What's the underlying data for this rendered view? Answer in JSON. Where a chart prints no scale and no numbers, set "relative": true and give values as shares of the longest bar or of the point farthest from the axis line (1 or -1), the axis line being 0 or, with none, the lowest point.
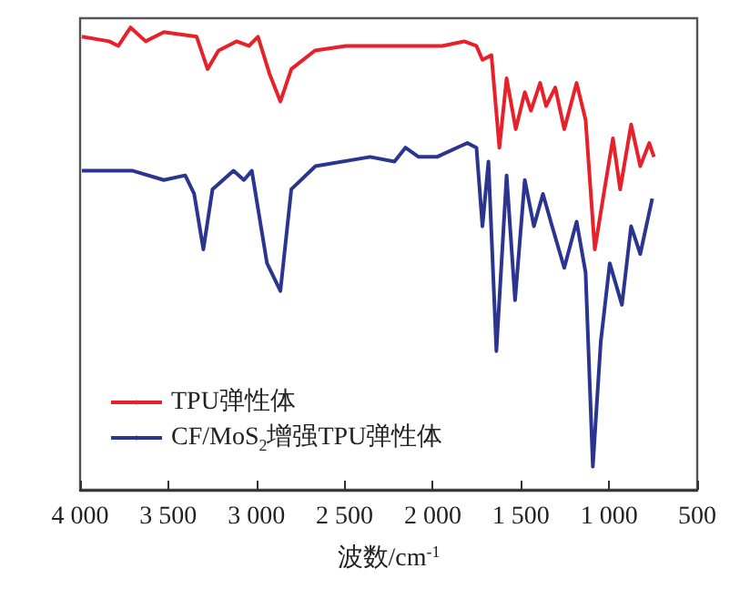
{
  "chart_data": {
    "type": "line",
    "xlabel": "波数/cm$^{-1}$",
    "relative": true,
    "xlim": [
      4000,
      500
    ],
    "xticks": [
      {
        "value": 4000,
        "label": "4 000"
      },
      {
        "value": 3500,
        "label": "3 500"
      },
      {
        "value": 3000,
        "label": "3 000"
      },
      {
        "value": 2500,
        "label": "2 500"
      },
      {
        "value": 2000,
        "label": "2 000"
      },
      {
        "value": 1500,
        "label": "1 500"
      },
      {
        "value": 1000,
        "label": "1 000"
      },
      500
    ],
    "tick_labels": "x",
    "grid": false,
    "legend": "bottom left",
    "marker": "none",
    "line_style": "solid",
    "series": [
      {
        "name": "TPU弹性体",
        "color": "#e8202a",
        "x": [
          3990,
          3835,
          3783,
          3714,
          3628,
          3525,
          3339,
          3277,
          3215,
          3112,
          3043,
          2991,
          2926,
          2864,
          2802,
          2668,
          2493,
          2080,
          1946,
          1822,
          1752,
          1718,
          1667,
          1622,
          1581,
          1529,
          1478,
          1443,
          1391,
          1357,
          1305,
          1254,
          1184,
          1133,
          1081,
          1030,
          978,
          937,
          875,
          823,
          772,
          745
        ],
        "values": [
          0.98,
          0.97,
          0.96,
          1.0,
          0.97,
          0.99,
          0.98,
          0.91,
          0.95,
          0.97,
          0.96,
          0.98,
          0.9,
          0.84,
          0.91,
          0.95,
          0.96,
          0.96,
          0.96,
          0.97,
          0.96,
          0.93,
          0.94,
          0.74,
          0.89,
          0.78,
          0.86,
          0.82,
          0.88,
          0.83,
          0.87,
          0.78,
          0.88,
          0.8,
          0.52,
          0.64,
          0.76,
          0.65,
          0.79,
          0.7,
          0.75,
          0.72
        ]
      },
      {
        "name": "CF/MoS$_{2}$增强TPU弹性体",
        "color": "#2b3590",
        "x": [
          3990,
          3701,
          3525,
          3404,
          3353,
          3301,
          3249,
          3130,
          3071,
          3026,
          2940,
          2864,
          2802,
          2665,
          2355,
          2217,
          2155,
          2080,
          1976,
          1804,
          1752,
          1718,
          1684,
          1639,
          1581,
          1533,
          1478,
          1426,
          1375,
          1323,
          1254,
          1184,
          1133,
          1092,
          1047,
          996,
          927,
          875,
          823,
          755
        ],
        "values": [
          0.69,
          0.69,
          0.67,
          0.68,
          0.64,
          0.52,
          0.65,
          0.69,
          0.67,
          0.69,
          0.49,
          0.43,
          0.65,
          0.7,
          0.72,
          0.71,
          0.74,
          0.72,
          0.72,
          0.75,
          0.74,
          0.57,
          0.71,
          0.3,
          0.68,
          0.41,
          0.67,
          0.57,
          0.64,
          0.57,
          0.48,
          0.58,
          0.47,
          0.05,
          0.32,
          0.49,
          0.4,
          0.57,
          0.51,
          0.63
        ]
      }
    ]
  }
}
